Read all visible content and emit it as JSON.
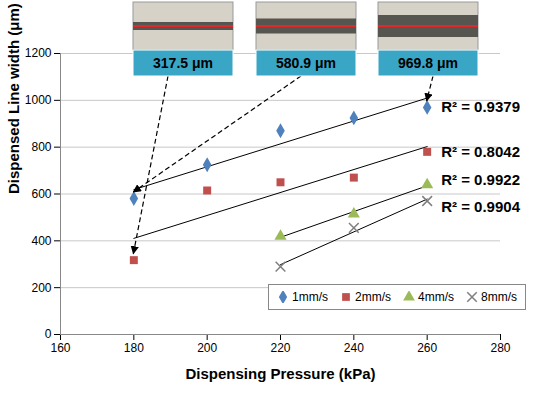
{
  "chart_data": {
    "type": "scatter",
    "x_label": "Dispensing Pressure (kPa)",
    "y_label": "Dispensed Line width (μm)",
    "xlim": [
      160,
      280
    ],
    "xticks": [
      160,
      180,
      200,
      220,
      240,
      260,
      280
    ],
    "ylim": [
      0,
      1200
    ],
    "yticks": [
      0,
      200,
      400,
      600,
      800,
      1000,
      1200
    ],
    "grid": true,
    "legend": "bottom-right",
    "series": [
      {
        "name": "1mm/s",
        "color": "#4F81BD",
        "marker": "diamond",
        "x": [
          180,
          200,
          220,
          240,
          260
        ],
        "values": [
          580.9,
          725,
          870,
          925,
          969.8
        ],
        "annotation": "R² = 0.9379"
      },
      {
        "name": "2mm/s",
        "color": "#C0504D",
        "marker": "square",
        "x": [
          180,
          200,
          220,
          240,
          260
        ],
        "values": [
          317.5,
          615,
          650,
          670,
          780
        ],
        "annotation": "R² = 0.8042"
      },
      {
        "name": "4mm/s",
        "color": "#9BBB59",
        "marker": "triangle",
        "x": [
          220,
          240,
          260
        ],
        "values": [
          420,
          515,
          640
        ],
        "annotation": "R² = 0.9922"
      },
      {
        "name": "8mm/s",
        "color": "#7F7F7F",
        "marker": "x",
        "x": [
          220,
          240,
          260
        ],
        "values": [
          290,
          455,
          570
        ],
        "annotation": "R² = 0.9904"
      }
    ],
    "insets": [
      {
        "label": "317.5 μm",
        "series": "2mm/s",
        "x": 180
      },
      {
        "label": "580.9 μm",
        "series": "1mm/s",
        "x": 180
      },
      {
        "label": "969.8 μm",
        "series": "1mm/s",
        "x": 260
      }
    ]
  }
}
